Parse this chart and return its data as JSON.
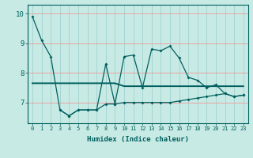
{
  "xlabel": "Humidex (Indice chaleur)",
  "x_values": [
    0,
    1,
    2,
    3,
    4,
    5,
    6,
    7,
    8,
    9,
    10,
    11,
    12,
    13,
    14,
    15,
    16,
    17,
    18,
    19,
    20,
    21,
    22,
    23
  ],
  "line_main": [
    9.9,
    9.1,
    8.55,
    6.75,
    6.55,
    6.75,
    6.75,
    6.75,
    8.3,
    6.95,
    8.55,
    8.6,
    7.5,
    8.8,
    8.75,
    8.9,
    8.5,
    7.85,
    7.75,
    7.5,
    7.6,
    7.3,
    7.2,
    7.25
  ],
  "line_flat": [
    7.65,
    7.65,
    7.65,
    7.65,
    7.65,
    7.65,
    7.65,
    7.65,
    7.65,
    7.65,
    7.55,
    7.55,
    7.55,
    7.55,
    7.55,
    7.55,
    7.55,
    7.55,
    7.55,
    7.55,
    7.55,
    7.55,
    7.55,
    7.55
  ],
  "line_low": [
    null,
    null,
    null,
    6.75,
    6.55,
    6.75,
    6.75,
    6.75,
    6.95,
    6.95,
    7.0,
    7.0,
    7.0,
    7.0,
    7.0,
    7.0,
    7.05,
    7.1,
    7.15,
    7.2,
    7.25,
    7.3,
    7.2,
    7.25
  ],
  "ylim": [
    6.3,
    10.3
  ],
  "yticks": [
    7,
    8,
    9,
    10
  ],
  "xlim": [
    -0.5,
    23.5
  ],
  "bg_color": "#c8eae4",
  "line_color": "#006060",
  "grid_h_color": "#ee9999",
  "grid_v_color": "#99cccc"
}
